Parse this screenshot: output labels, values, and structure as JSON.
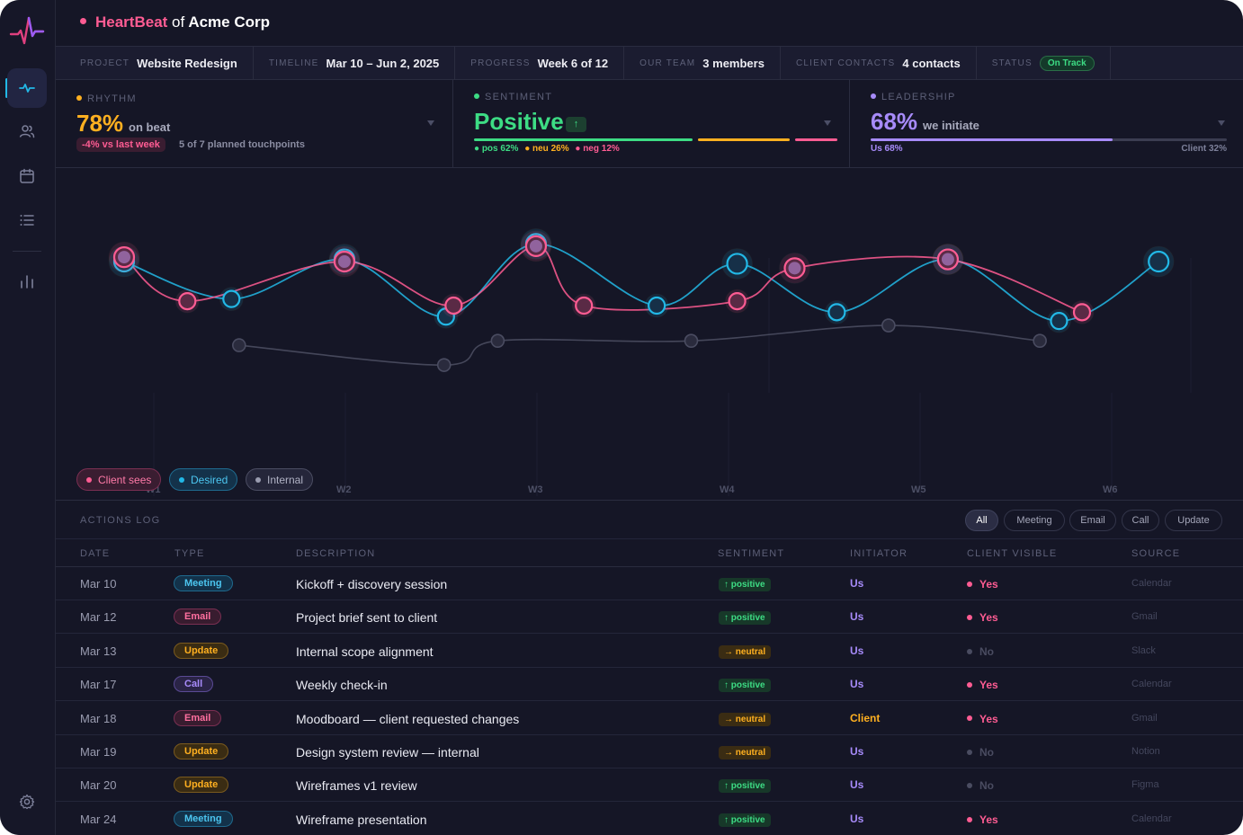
{
  "brand": {
    "name_accent": "HeartBeat",
    "of": "of",
    "company": "Acme Corp"
  },
  "nav": {
    "items": [
      {
        "name": "pulse",
        "active": true
      },
      {
        "name": "users",
        "active": false
      },
      {
        "name": "calendar",
        "active": false
      },
      {
        "name": "list",
        "active": false
      },
      {
        "name": "chart",
        "active": false
      }
    ],
    "settings": "settings"
  },
  "info": {
    "project_label": "PROJECT",
    "project_value": "Website Redesign",
    "timeline_label": "TIMELINE",
    "timeline_value": "Mar 10 – Jun 2, 2025",
    "progress_label": "PROGRESS",
    "progress_value": "Week 6 of 12",
    "team_label": "OUR TEAM",
    "team_value": "3 members",
    "contacts_label": "CLIENT CONTACTS",
    "contacts_value": "4 contacts",
    "status_label": "STATUS",
    "status_value": "On Track"
  },
  "rhythm": {
    "label": "RHYTHM",
    "value": "78%",
    "suffix": "on beat",
    "delta": "-4% vs last week",
    "note": "5 of 7 planned touchpoints",
    "color": "#ffb020"
  },
  "sentiment": {
    "label": "SENTIMENT",
    "value": "Positive",
    "trend": "↑",
    "pos_label": "pos 62%",
    "neu_label": "neu 26%",
    "neg_label": "neg 12%",
    "pos": 62,
    "neu": 26,
    "neg": 12,
    "color": "#3ddc84"
  },
  "leadership": {
    "label": "LEADERSHIP",
    "value": "68%",
    "suffix": "we initiate",
    "us_label": "Us 68%",
    "client_label": "Client 32%",
    "us": 68,
    "color": "#a78bfa"
  },
  "chart_data": {
    "type": "line",
    "x_labels": [
      "W1",
      "W2",
      "W3",
      "W4",
      "W5",
      "W6"
    ],
    "series": [
      {
        "name": "Client sees",
        "color": "#ff5c93",
        "points": [
          [
            0.0,
            0.82
          ],
          [
            0.33,
            0.62
          ],
          [
            1.15,
            0.8
          ],
          [
            1.72,
            0.6
          ],
          [
            2.15,
            0.87
          ],
          [
            2.4,
            0.6
          ],
          [
            3.2,
            0.62
          ],
          [
            3.5,
            0.77
          ],
          [
            4.3,
            0.81
          ],
          [
            5.0,
            0.57
          ]
        ]
      },
      {
        "name": "Desired",
        "color": "#22b8e6",
        "points": [
          [
            0.0,
            0.8
          ],
          [
            0.56,
            0.63
          ],
          [
            1.15,
            0.81
          ],
          [
            1.68,
            0.55
          ],
          [
            2.15,
            0.88
          ],
          [
            2.78,
            0.6
          ],
          [
            3.2,
            0.79
          ],
          [
            3.72,
            0.57
          ],
          [
            4.3,
            0.81
          ],
          [
            4.88,
            0.53
          ],
          [
            5.4,
            0.8
          ]
        ]
      },
      {
        "name": "Internal",
        "color": "#4a4c61",
        "points": [
          [
            0.6,
            0.42
          ],
          [
            1.67,
            0.33
          ],
          [
            1.95,
            0.44
          ],
          [
            2.96,
            0.44
          ],
          [
            3.99,
            0.51
          ],
          [
            4.78,
            0.44
          ]
        ]
      }
    ]
  },
  "legend": {
    "client": "Client sees",
    "desired": "Desired",
    "internal": "Internal"
  },
  "log": {
    "title": "ACTIONS LOG",
    "filters": [
      "All",
      "Meeting",
      "Email",
      "Call",
      "Update"
    ],
    "headers": {
      "date": "DATE",
      "type": "TYPE",
      "description": "DESCRIPTION",
      "sentiment": "SENTIMENT",
      "initiator": "INITIATOR",
      "visible": "CLIENT VISIBLE",
      "source": "SOURCE"
    },
    "rows": [
      {
        "date": "Mar 10",
        "type": "Meeting",
        "desc": "Kickoff + discovery session",
        "sentiment": "↑ positive",
        "initiator": "Us",
        "visible": "Yes",
        "source": "Calendar"
      },
      {
        "date": "Mar 12",
        "type": "Email",
        "desc": "Project brief sent to client",
        "sentiment": "↑ positive",
        "initiator": "Us",
        "visible": "Yes",
        "source": "Gmail"
      },
      {
        "date": "Mar 13",
        "type": "Update",
        "desc": "Internal scope alignment",
        "sentiment": "→ neutral",
        "initiator": "Us",
        "visible": "No",
        "source": "Slack"
      },
      {
        "date": "Mar 17",
        "type": "Call",
        "desc": "Weekly check-in",
        "sentiment": "↑ positive",
        "initiator": "Us",
        "visible": "Yes",
        "source": "Calendar"
      },
      {
        "date": "Mar 18",
        "type": "Email",
        "desc": "Moodboard — client requested changes",
        "sentiment": "→ neutral",
        "initiator": "Client",
        "visible": "Yes",
        "source": "Gmail"
      },
      {
        "date": "Mar 19",
        "type": "Update",
        "desc": "Design system review — internal",
        "sentiment": "→ neutral",
        "initiator": "Us",
        "visible": "No",
        "source": "Notion"
      },
      {
        "date": "Mar 20",
        "type": "Update",
        "desc": "Wireframes v1 review",
        "sentiment": "↑ positive",
        "initiator": "Us",
        "visible": "No",
        "source": "Figma"
      },
      {
        "date": "Mar 24",
        "type": "Meeting",
        "desc": "Wireframe presentation",
        "sentiment": "↑ positive",
        "initiator": "Us",
        "visible": "Yes",
        "source": "Calendar"
      }
    ]
  }
}
